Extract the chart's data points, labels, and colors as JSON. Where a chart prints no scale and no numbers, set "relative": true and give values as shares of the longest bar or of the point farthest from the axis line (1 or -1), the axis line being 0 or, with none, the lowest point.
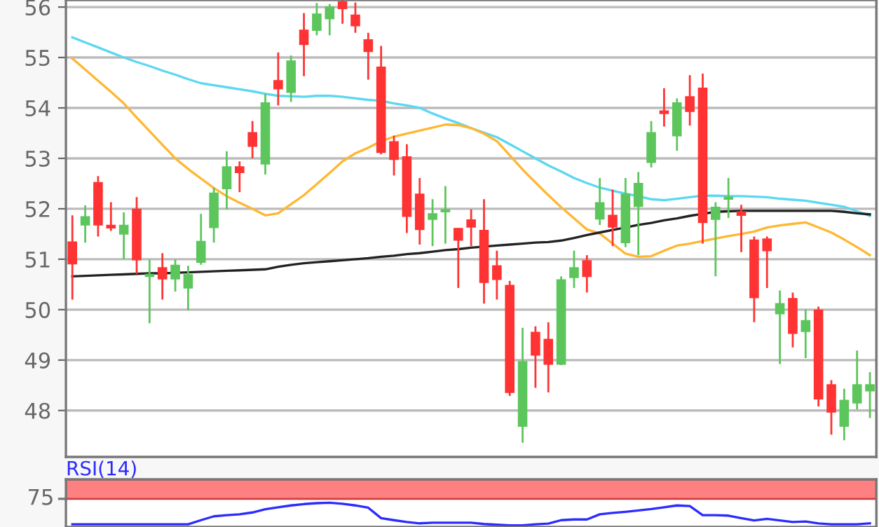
{
  "chart_data": [
    {
      "type": "candlestick",
      "categories": [
        null,
        null,
        null,
        null,
        null,
        null,
        null,
        null,
        null,
        null,
        null,
        null,
        null,
        null,
        null,
        null,
        null,
        null,
        null,
        null,
        null,
        null,
        null,
        null,
        null,
        null,
        null,
        null,
        null,
        null,
        null,
        null,
        null,
        null,
        null,
        null,
        null,
        null,
        null,
        null,
        null,
        null,
        null,
        null,
        null,
        null,
        null,
        null,
        null,
        null,
        null,
        null,
        null,
        null,
        null,
        null,
        null,
        null,
        null,
        null,
        null,
        null,
        null
      ],
      "ohlc": [
        [
          51.34,
          51.87,
          50.2,
          50.91
        ],
        [
          51.68,
          52.07,
          51.33,
          51.84
        ],
        [
          52.52,
          52.65,
          51.45,
          51.68
        ],
        [
          51.67,
          52.13,
          51.56,
          51.62
        ],
        [
          51.5,
          51.93,
          51.0,
          51.67
        ],
        [
          51.99,
          52.23,
          50.71,
          50.99
        ],
        [
          50.66,
          50.99,
          49.73,
          50.7
        ],
        [
          50.83,
          51.12,
          50.2,
          50.61
        ],
        [
          50.61,
          50.99,
          50.36,
          50.88
        ],
        [
          50.43,
          50.87,
          49.99,
          50.69
        ],
        [
          50.94,
          51.9,
          50.89,
          51.35
        ],
        [
          51.63,
          52.42,
          51.33,
          52.31
        ],
        [
          52.4,
          53.14,
          51.99,
          52.83
        ],
        [
          52.83,
          52.94,
          52.33,
          52.72
        ],
        [
          53.51,
          53.74,
          53.0,
          53.24
        ],
        [
          52.89,
          54.28,
          52.68,
          54.1
        ],
        [
          54.54,
          55.1,
          54.05,
          54.38
        ],
        [
          54.31,
          55.04,
          54.12,
          54.93
        ],
        [
          55.54,
          55.88,
          54.63,
          55.26
        ],
        [
          55.54,
          56.08,
          55.44,
          55.86
        ],
        [
          55.77,
          56.06,
          55.44,
          56.0
        ],
        [
          56.1,
          56.13,
          55.67,
          55.97
        ],
        [
          55.84,
          56.09,
          55.49,
          55.63
        ],
        [
          55.35,
          55.49,
          54.56,
          55.12
        ],
        [
          54.81,
          55.23,
          53.08,
          53.12
        ],
        [
          53.33,
          53.45,
          52.66,
          52.98
        ],
        [
          53.03,
          53.28,
          51.52,
          51.85
        ],
        [
          52.29,
          52.61,
          51.29,
          51.59
        ],
        [
          51.79,
          52.19,
          51.26,
          51.9
        ],
        [
          51.94,
          52.45,
          51.31,
          51.98
        ],
        [
          51.61,
          51.62,
          50.43,
          51.38
        ],
        [
          51.78,
          51.99,
          51.26,
          51.64
        ],
        [
          51.57,
          52.19,
          50.12,
          50.54
        ],
        [
          50.87,
          51.17,
          50.2,
          50.6
        ],
        [
          50.48,
          50.57,
          48.29,
          48.36
        ],
        [
          47.69,
          49.64,
          47.36,
          48.97
        ],
        [
          49.55,
          49.67,
          48.45,
          49.1
        ],
        [
          49.41,
          49.75,
          48.36,
          48.92
        ],
        [
          48.92,
          50.66,
          48.9,
          50.59
        ],
        [
          50.64,
          51.17,
          50.43,
          50.83
        ],
        [
          50.97,
          51.08,
          50.34,
          50.66
        ],
        [
          51.8,
          52.61,
          51.68,
          52.12
        ],
        [
          51.87,
          52.38,
          51.26,
          51.64
        ],
        [
          51.33,
          52.61,
          51.24,
          52.29
        ],
        [
          52.05,
          52.73,
          51.08,
          52.5
        ],
        [
          52.92,
          53.74,
          52.82,
          53.51
        ],
        [
          53.94,
          54.39,
          53.63,
          53.89
        ],
        [
          53.45,
          54.19,
          53.15,
          54.1
        ],
        [
          54.22,
          54.65,
          53.65,
          53.93
        ],
        [
          54.39,
          54.68,
          51.31,
          51.73
        ],
        [
          51.79,
          52.13,
          50.66,
          52.03
        ],
        [
          52.19,
          52.61,
          51.82,
          52.23
        ],
        [
          51.94,
          52.08,
          51.14,
          51.87
        ],
        [
          51.38,
          51.45,
          49.75,
          50.24
        ],
        [
          51.4,
          51.45,
          50.43,
          51.17
        ],
        [
          49.92,
          50.38,
          48.92,
          50.12
        ],
        [
          50.22,
          50.34,
          49.25,
          49.53
        ],
        [
          49.57,
          50.01,
          49.04,
          49.78
        ],
        [
          49.99,
          50.06,
          48.08,
          48.23
        ],
        [
          48.51,
          48.6,
          47.52,
          47.97
        ],
        [
          47.69,
          48.43,
          47.41,
          48.2
        ],
        [
          48.15,
          49.19,
          48.02,
          48.51
        ],
        [
          48.39,
          48.76,
          47.85,
          48.51
        ]
      ],
      "colors": [
        "#ff3333",
        "#5cc65c",
        "#ff3333",
        "#ff3333",
        "#5cc65c",
        "#ff3333",
        "#5cc65c",
        "#ff3333",
        "#5cc65c",
        "#5cc65c",
        "#5cc65c",
        "#5cc65c",
        "#5cc65c",
        "#ff3333",
        "#ff3333",
        "#5cc65c",
        "#ff3333",
        "#5cc65c",
        "#ff3333",
        "#5cc65c",
        "#5cc65c",
        "#ff3333",
        "#ff3333",
        "#ff3333",
        "#ff3333",
        "#ff3333",
        "#ff3333",
        "#ff3333",
        "#5cc65c",
        "#5cc65c",
        "#ff3333",
        "#ff3333",
        "#ff3333",
        "#ff3333",
        "#ff3333",
        "#5cc65c",
        "#ff3333",
        "#ff3333",
        "#5cc65c",
        "#5cc65c",
        "#ff3333",
        "#5cc65c",
        "#ff3333",
        "#5cc65c",
        "#5cc65c",
        "#5cc65c",
        "#ff3333",
        "#5cc65c",
        "#ff3333",
        "#ff3333",
        "#5cc65c",
        "#5cc65c",
        "#ff3333",
        "#ff3333",
        "#ff3333",
        "#5cc65c",
        "#ff3333",
        "#5cc65c",
        "#ff3333",
        "#ff3333",
        "#5cc65c",
        "#5cc65c",
        "#5cc65c"
      ],
      "series": [
        {
          "type": "line",
          "color": "#5bd8f0",
          "values": [
            55.4,
            55.3,
            55.2,
            55.1,
            55.0,
            54.91,
            54.83,
            54.74,
            54.66,
            54.57,
            54.49,
            54.45,
            54.41,
            54.37,
            54.33,
            54.28,
            54.24,
            54.23,
            54.22,
            54.24,
            54.24,
            54.22,
            54.19,
            54.16,
            54.14,
            54.09,
            54.05,
            54.0,
            53.89,
            53.79,
            53.7,
            53.6,
            53.51,
            53.42,
            53.28,
            53.14,
            53.0,
            52.86,
            52.74,
            52.61,
            52.51,
            52.42,
            52.36,
            52.3,
            52.25,
            52.19,
            52.17,
            52.2,
            52.23,
            52.26,
            52.26,
            52.25,
            52.25,
            52.24,
            52.23,
            52.2,
            52.18,
            52.16,
            52.12,
            52.08,
            52.04,
            51.95,
            51.86
          ]
        },
        {
          "type": "line",
          "color": "#ffb732",
          "values": [
            54.98,
            54.76,
            54.54,
            54.32,
            54.09,
            53.81,
            53.54,
            53.27,
            53.0,
            52.79,
            52.6,
            52.41,
            52.25,
            52.12,
            52.0,
            51.87,
            51.91,
            52.09,
            52.27,
            52.49,
            52.71,
            52.94,
            53.1,
            53.21,
            53.34,
            53.43,
            53.49,
            53.55,
            53.61,
            53.67,
            53.66,
            53.6,
            53.49,
            53.34,
            53.06,
            52.78,
            52.52,
            52.27,
            52.03,
            51.81,
            51.59,
            51.51,
            51.31,
            51.11,
            51.05,
            51.06,
            51.17,
            51.27,
            51.31,
            51.36,
            51.41,
            51.46,
            51.5,
            51.55,
            51.63,
            51.67,
            51.7,
            51.73,
            51.63,
            51.53,
            51.39,
            51.24,
            51.08
          ]
        },
        {
          "type": "line",
          "color": "#222222",
          "values": [
            50.66,
            50.67,
            50.68,
            50.69,
            50.7,
            50.71,
            50.72,
            50.72,
            50.73,
            50.74,
            50.75,
            50.76,
            50.77,
            50.78,
            50.79,
            50.8,
            50.85,
            50.89,
            50.92,
            50.94,
            50.96,
            50.98,
            51.0,
            51.02,
            51.05,
            51.07,
            51.1,
            51.12,
            51.15,
            51.18,
            51.2,
            51.23,
            51.25,
            51.27,
            51.29,
            51.31,
            51.33,
            51.34,
            51.37,
            51.42,
            51.48,
            51.53,
            51.58,
            51.63,
            51.68,
            51.72,
            51.77,
            51.81,
            51.86,
            51.9,
            51.94,
            51.95,
            51.96,
            51.96,
            51.96,
            51.96,
            51.96,
            51.96,
            51.96,
            51.96,
            51.94,
            51.91,
            51.89
          ]
        }
      ],
      "ylim": [
        47.08,
        56.14
      ],
      "yticks": [
        48,
        49,
        50,
        51,
        52,
        53,
        54,
        55,
        56
      ],
      "grid": "y",
      "tick_labels": "y"
    },
    {
      "type": "line",
      "title": "RSI(14)",
      "relative": true,
      "categories": [
        null,
        null,
        null,
        null,
        null,
        null,
        null,
        null,
        null,
        null,
        null,
        null,
        null,
        null,
        null,
        null,
        null,
        null,
        null,
        null,
        null,
        null,
        null,
        null,
        null,
        null,
        null,
        null,
        null,
        null,
        null,
        null,
        null,
        null,
        null,
        null,
        null,
        null,
        null,
        null,
        null,
        null,
        null,
        null,
        null,
        null,
        null,
        null,
        null,
        null,
        null,
        null,
        null,
        null,
        null,
        null,
        null,
        null,
        null,
        null,
        null,
        null,
        null
      ],
      "series": [
        {
          "color": "#2b2bff",
          "values": [
            0.05,
            0.05,
            0.05,
            0.05,
            0.05,
            0.05,
            0.05,
            0.05,
            0.05,
            0.05,
            0.23,
            0.4,
            0.45,
            0.49,
            0.57,
            0.71,
            0.8,
            0.88,
            0.94,
            0.98,
            1,
            0.95,
            0.88,
            0.78,
            0.32,
            0.23,
            0.15,
            0.09,
            0.12,
            0.12,
            0.12,
            0.12,
            0.06,
            0.03,
            0,
            0,
            0.05,
            0.08,
            0.23,
            0.26,
            0.26,
            0.49,
            0.55,
            0.6,
            0.66,
            0.72,
            0.8,
            0.88,
            0.85,
            0.45,
            0.45,
            0.43,
            0.32,
            0.22,
            0.29,
            0.22,
            0.15,
            0.17,
            0.09,
            0.05,
            0.05,
            0.05,
            0.09
          ]
        }
      ],
      "bands": [
        {
          "axis": "y",
          "from": 1.17,
          "to": 2.03,
          "color": "#ff8080"
        }
      ],
      "annotations": [
        "75"
      ]
    }
  ]
}
